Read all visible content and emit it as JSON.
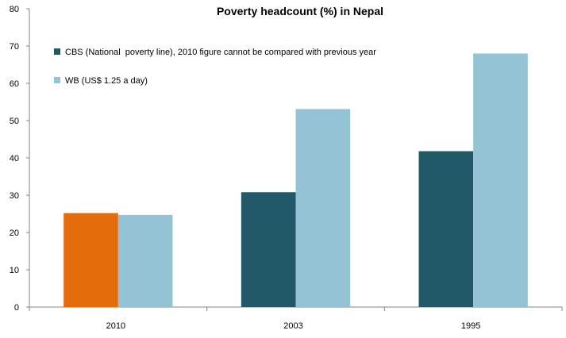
{
  "chart_data": {
    "type": "bar",
    "title": "Poverty headcount (%) in Nepal",
    "xlabel": "",
    "ylabel": "",
    "ylim": [
      0,
      80
    ],
    "yticks": [
      0,
      10,
      20,
      30,
      40,
      50,
      60,
      70,
      80
    ],
    "categories": [
      "2010",
      "2003",
      "1995"
    ],
    "series": [
      {
        "name": "CBS (National  poverty line), 2010 figure cannot be compared with previous year",
        "color": "#215968",
        "values": [
          25.2,
          30.8,
          41.8
        ]
      },
      {
        "name": "WB (US$ 1.25 a day)",
        "color": "#93c3d5",
        "values": [
          24.7,
          53.1,
          68.0
        ]
      }
    ],
    "highlight": {
      "series": 0,
      "category": 0,
      "color": "#e46c0a"
    },
    "legend": "top-left",
    "grid": false
  }
}
